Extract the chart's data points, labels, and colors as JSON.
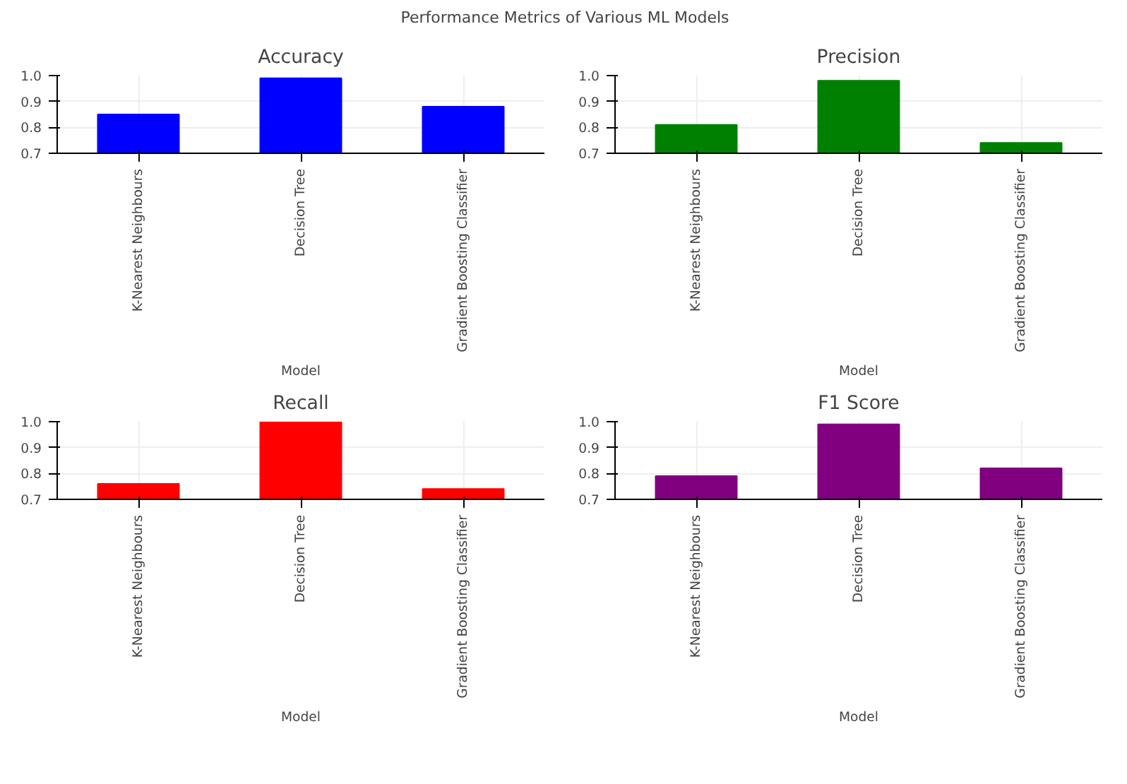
{
  "chart_data": [
    {
      "type": "bar",
      "title": "Accuracy",
      "xlabel": "Model",
      "annotations": [
        "Performance Metrics of Various ML Models"
      ],
      "categories": [
        "K-Nearest Neighbours",
        "Decision Tree",
        "Gradient Boosting Classifier"
      ],
      "values": [
        0.85,
        0.99,
        0.88
      ],
      "color": "#0000ff",
      "ylim": [
        0.7,
        1.0
      ],
      "yticks": [
        {
          "value": 0.7,
          "label": "0.7"
        },
        {
          "value": 0.8,
          "label": "0.8"
        },
        {
          "value": 0.9,
          "label": "0.9"
        },
        {
          "value": 1.0,
          "label": "1.0"
        }
      ],
      "grid": true
    },
    {
      "type": "bar",
      "title": "Precision",
      "xlabel": "Model",
      "categories": [
        "K-Nearest Neighbours",
        "Decision Tree",
        "Gradient Boosting Classifier"
      ],
      "values": [
        0.81,
        0.98,
        0.74
      ],
      "color": "#008000",
      "ylim": [
        0.7,
        1.0
      ],
      "yticks": [
        {
          "value": 0.7,
          "label": "0.7"
        },
        {
          "value": 0.8,
          "label": "0.8"
        },
        {
          "value": 0.9,
          "label": "0.9"
        },
        {
          "value": 1.0,
          "label": "1.0"
        }
      ],
      "grid": true
    },
    {
      "type": "bar",
      "title": "Recall",
      "xlabel": "Model",
      "categories": [
        "K-Nearest Neighbours",
        "Decision Tree",
        "Gradient Boosting Classifier"
      ],
      "values": [
        0.76,
        1.0,
        0.74
      ],
      "color": "#ff0000",
      "ylim": [
        0.7,
        1.0
      ],
      "yticks": [
        {
          "value": 0.7,
          "label": "0.7"
        },
        {
          "value": 0.8,
          "label": "0.8"
        },
        {
          "value": 0.9,
          "label": "0.9"
        },
        {
          "value": 1.0,
          "label": "1.0"
        }
      ],
      "grid": true
    },
    {
      "type": "bar",
      "title": "F1 Score",
      "xlabel": "Model",
      "categories": [
        "K-Nearest Neighbours",
        "Decision Tree",
        "Gradient Boosting Classifier"
      ],
      "values": [
        0.79,
        0.99,
        0.82
      ],
      "color": "#800080",
      "ylim": [
        0.7,
        1.0
      ],
      "yticks": [
        {
          "value": 0.7,
          "label": "0.7"
        },
        {
          "value": 0.8,
          "label": "0.8"
        },
        {
          "value": 0.9,
          "label": "0.9"
        },
        {
          "value": 1.0,
          "label": "1.0"
        }
      ],
      "grid": true
    }
  ]
}
